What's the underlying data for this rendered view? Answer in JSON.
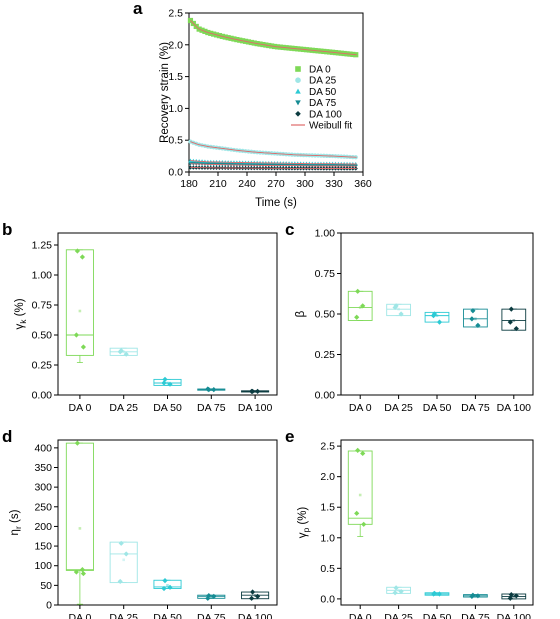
{
  "colors": {
    "DA 0": "#7ed957",
    "DA 25": "#9fe6e6",
    "DA 50": "#2dcad4",
    "DA 75": "#168c94",
    "DA 100": "#0b3b40",
    "weibull": "#e06b6b",
    "axis": "#000000"
  },
  "chart_data": [
    {
      "panel": "a",
      "type": "scatter",
      "xlabel": "Time (s)",
      "ylabel": "Recovery strain (%)",
      "xlim": [
        180,
        360
      ],
      "ylim": [
        0,
        2.5
      ],
      "xticks": [
        "180",
        "210",
        "240",
        "270",
        "300",
        "330",
        "360"
      ],
      "yticks": [
        "0.0",
        "0.5",
        "1.0",
        "1.5",
        "2.0",
        "2.5"
      ],
      "legend_position": "right",
      "legend": [
        "DA 0",
        "DA 25",
        "DA 50",
        "DA 75",
        "DA 100",
        "Weibull fit"
      ],
      "series": [
        {
          "name": "DA 0",
          "marker": "square",
          "x": [
            181,
            190,
            200,
            215,
            230,
            250,
            270,
            290,
            310,
            330,
            355
          ],
          "values": [
            2.39,
            2.25,
            2.19,
            2.13,
            2.08,
            2.02,
            1.97,
            1.94,
            1.91,
            1.88,
            1.84
          ]
        },
        {
          "name": "DA 25",
          "marker": "circle",
          "x": [
            181,
            190,
            200,
            215,
            230,
            250,
            270,
            290,
            310,
            330,
            355
          ],
          "values": [
            0.48,
            0.43,
            0.4,
            0.37,
            0.34,
            0.31,
            0.29,
            0.27,
            0.26,
            0.25,
            0.23
          ]
        },
        {
          "name": "DA 50",
          "marker": "triangle-up",
          "x": [
            181,
            190,
            200,
            215,
            230,
            250,
            270,
            290,
            310,
            330,
            355
          ],
          "values": [
            0.18,
            0.17,
            0.16,
            0.155,
            0.15,
            0.145,
            0.14,
            0.135,
            0.13,
            0.13,
            0.125
          ]
        },
        {
          "name": "DA 75",
          "marker": "triangle-down",
          "x": [
            181,
            190,
            200,
            215,
            230,
            250,
            270,
            290,
            310,
            330,
            355
          ],
          "values": [
            0.13,
            0.125,
            0.12,
            0.115,
            0.11,
            0.105,
            0.1,
            0.1,
            0.095,
            0.095,
            0.09
          ]
        },
        {
          "name": "DA 100",
          "marker": "diamond",
          "x": [
            181,
            190,
            200,
            215,
            230,
            250,
            270,
            290,
            310,
            330,
            355
          ],
          "values": [
            0.07,
            0.068,
            0.066,
            0.064,
            0.062,
            0.06,
            0.058,
            0.057,
            0.056,
            0.055,
            0.054
          ]
        }
      ]
    },
    {
      "panel": "b",
      "type": "box",
      "xlabel": "",
      "ylabel_main": "γ",
      "ylabel_sub": "k",
      "ylabel_tail": " (%)",
      "ylim": [
        0,
        1.35
      ],
      "yticks": [
        0,
        0.25,
        0.5,
        0.75,
        1.0,
        1.25
      ],
      "ytick_labels": [
        "0.00",
        "0.25",
        "0.50",
        "0.75",
        "1.00",
        "1.25"
      ],
      "categories": [
        "DA 0",
        "DA 25",
        "DA 50",
        "DA 75",
        "DA 100"
      ],
      "boxes": [
        {
          "q1": 0.33,
          "median": 0.5,
          "q3": 1.21,
          "whisker_low": 0.27,
          "whisker_high": 1.21,
          "mean": 0.7,
          "points": [
            1.2,
            1.15,
            0.5,
            0.4
          ]
        },
        {
          "q1": 0.33,
          "median": 0.36,
          "q3": 0.39,
          "whisker_low": 0.33,
          "whisker_high": 0.39,
          "mean": 0.36,
          "points": [
            0.37,
            0.34,
            0.36
          ]
        },
        {
          "q1": 0.08,
          "median": 0.1,
          "q3": 0.13,
          "whisker_low": 0.08,
          "whisker_high": 0.13,
          "mean": 0.1,
          "points": [
            0.13,
            0.09,
            0.1
          ]
        },
        {
          "q1": 0.04,
          "median": 0.045,
          "q3": 0.05,
          "whisker_low": 0.04,
          "whisker_high": 0.05,
          "mean": 0.045,
          "points": [
            0.045,
            0.045,
            0.05
          ]
        },
        {
          "q1": 0.025,
          "median": 0.03,
          "q3": 0.035,
          "whisker_low": 0.025,
          "whisker_high": 0.035,
          "mean": 0.03,
          "points": [
            0.03,
            0.03,
            0.03
          ]
        }
      ]
    },
    {
      "panel": "c",
      "type": "box",
      "xlabel": "",
      "ylabel_main": "β",
      "ylabel_sub": "",
      "ylabel_tail": "",
      "ylim": [
        0,
        1.0
      ],
      "yticks": [
        0,
        0.25,
        0.5,
        0.75,
        1.0
      ],
      "ytick_labels": [
        "0.00",
        "0.25",
        "0.50",
        "0.75",
        "1.00"
      ],
      "categories": [
        "DA 0",
        "DA 25",
        "DA 50",
        "DA 75",
        "DA 100"
      ],
      "boxes": [
        {
          "q1": 0.46,
          "median": 0.54,
          "q3": 0.64,
          "whisker_low": 0.46,
          "whisker_high": 0.64,
          "mean": 0.54,
          "points": [
            0.64,
            0.55,
            0.48
          ]
        },
        {
          "q1": 0.49,
          "median": 0.53,
          "q3": 0.56,
          "whisker_low": 0.49,
          "whisker_high": 0.56,
          "mean": 0.53,
          "points": [
            0.55,
            0.5,
            0.54
          ]
        },
        {
          "q1": 0.45,
          "median": 0.49,
          "q3": 0.51,
          "whisker_low": 0.45,
          "whisker_high": 0.51,
          "mean": 0.49,
          "points": [
            0.5,
            0.45,
            0.49
          ]
        },
        {
          "q1": 0.42,
          "median": 0.47,
          "q3": 0.53,
          "whisker_low": 0.42,
          "whisker_high": 0.53,
          "mean": 0.47,
          "points": [
            0.52,
            0.43,
            0.47
          ]
        },
        {
          "q1": 0.4,
          "median": 0.46,
          "q3": 0.53,
          "whisker_low": 0.4,
          "whisker_high": 0.53,
          "mean": 0.46,
          "points": [
            0.53,
            0.41,
            0.45
          ]
        }
      ]
    },
    {
      "panel": "d",
      "type": "box",
      "xlabel": "",
      "ylabel_main": "η",
      "ylabel_sub": "r",
      "ylabel_tail": " (s)",
      "ylim": [
        0,
        420
      ],
      "yticks": [
        0,
        50,
        100,
        150,
        200,
        250,
        300,
        350,
        400
      ],
      "ytick_labels": [
        "0",
        "50",
        "100",
        "150",
        "200",
        "250",
        "300",
        "350",
        "400"
      ],
      "categories": [
        "DA 0",
        "DA 25",
        "DA 50",
        "DA 75",
        "DA 100"
      ],
      "boxes": [
        {
          "q1": 88,
          "median": 90,
          "q3": 412,
          "whisker_low": 2,
          "whisker_high": 412,
          "mean": 195,
          "points": [
            412,
            90,
            84,
            80
          ]
        },
        {
          "q1": 57,
          "median": 130,
          "q3": 160,
          "whisker_low": 57,
          "whisker_high": 160,
          "mean": 115,
          "points": [
            157,
            130,
            60
          ]
        },
        {
          "q1": 42,
          "median": 46,
          "q3": 63,
          "whisker_low": 42,
          "whisker_high": 63,
          "mean": 50,
          "points": [
            62,
            45,
            42
          ]
        },
        {
          "q1": 17,
          "median": 22,
          "q3": 25,
          "whisker_low": 17,
          "whisker_high": 25,
          "mean": 21,
          "points": [
            24,
            22,
            17
          ]
        },
        {
          "q1": 16,
          "median": 25,
          "q3": 33,
          "whisker_low": 16,
          "whisker_high": 33,
          "mean": 24,
          "points": [
            33,
            22,
            17
          ]
        }
      ]
    },
    {
      "panel": "e",
      "type": "box",
      "xlabel": "",
      "ylabel_main": "γ",
      "ylabel_sub": "p",
      "ylabel_tail": " (%)",
      "ylim": [
        -0.1,
        2.6
      ],
      "yticks": [
        0,
        0.5,
        1.0,
        1.5,
        2.0,
        2.5
      ],
      "ytick_labels": [
        "0.0",
        "0.5",
        "1.0",
        "1.5",
        "2.0",
        "2.5"
      ],
      "categories": [
        "DA 0",
        "DA 25",
        "DA 50",
        "DA 75",
        "DA 100"
      ],
      "boxes": [
        {
          "q1": 1.22,
          "median": 1.32,
          "q3": 2.42,
          "whisker_low": 1.02,
          "whisker_high": 2.42,
          "mean": 1.7,
          "points": [
            2.43,
            2.38,
            1.4,
            1.22
          ]
        },
        {
          "q1": 0.09,
          "median": 0.14,
          "q3": 0.19,
          "whisker_low": 0.09,
          "whisker_high": 0.19,
          "mean": 0.14,
          "points": [
            0.18,
            0.12,
            0.1
          ]
        },
        {
          "q1": 0.06,
          "median": 0.08,
          "q3": 0.1,
          "whisker_low": 0.06,
          "whisker_high": 0.1,
          "mean": 0.08,
          "points": [
            0.09,
            0.08,
            0.08
          ]
        },
        {
          "q1": 0.03,
          "median": 0.05,
          "q3": 0.07,
          "whisker_low": 0.03,
          "whisker_high": 0.07,
          "mean": 0.05,
          "points": [
            0.06,
            0.05,
            0.04
          ]
        },
        {
          "q1": 0.0,
          "median": 0.04,
          "q3": 0.08,
          "whisker_low": 0.0,
          "whisker_high": 0.08,
          "mean": 0.04,
          "points": [
            0.07,
            0.05,
            0.01
          ]
        }
      ]
    }
  ]
}
